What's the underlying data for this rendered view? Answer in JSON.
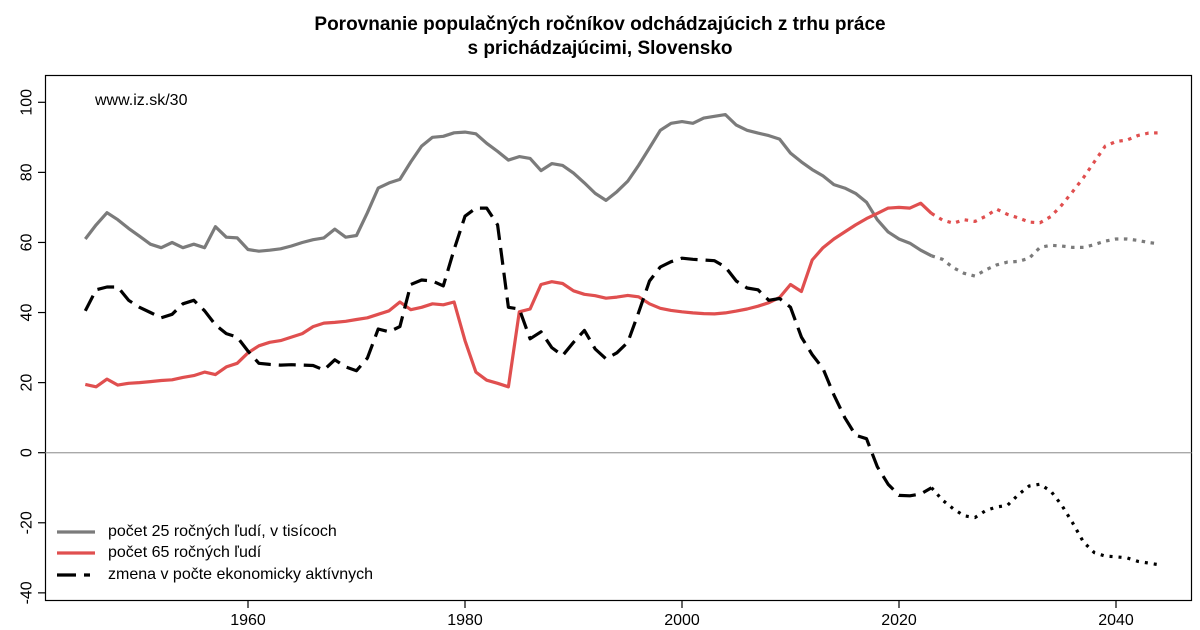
{
  "title": {
    "line1": "Porovnanie populačných ročníkov odchádzajúcich z trhu práce",
    "line2": "s prichádzajúcimi, Slovensko"
  },
  "watermark": "www.iz.sk/30",
  "chart_data": {
    "type": "line",
    "x_start_year": 1945,
    "x_end_year": 2044,
    "x_ticks": [
      1960,
      1980,
      2000,
      2020,
      2040
    ],
    "y_ticks": [
      -40,
      -20,
      0,
      20,
      40,
      60,
      80,
      100
    ],
    "ylim": [
      -43,
      103
    ],
    "zero_line": true,
    "grid": "zero-line-only",
    "projection_from_year": 2023,
    "projection_style": "dotted",
    "legend_position": "bottom-left",
    "axis_color": "#000000",
    "zero_line_color": "#a9a9a9",
    "series": [
      {
        "name": "počet 25 ročných ľudí, v tisícoch",
        "color": "#7b7b7b",
        "line_style": "solid",
        "values": [
          61,
          65,
          68.5,
          66.5,
          64,
          61.8,
          59.5,
          58.5,
          60,
          58.5,
          59.5,
          58.5,
          64.5,
          61.5,
          61.3,
          58,
          57.5,
          57.8,
          58.2,
          59,
          60,
          60.8,
          61.3,
          63.8,
          61.5,
          62,
          68.5,
          75.5,
          77,
          78,
          83,
          87.5,
          90,
          90.3,
          91.3,
          91.5,
          91,
          88.3,
          86,
          83.5,
          84.5,
          84,
          80.5,
          82.5,
          82,
          79.8,
          77,
          74,
          72,
          74.5,
          77.5,
          82,
          87,
          92,
          94,
          94.5,
          94,
          95.5,
          96,
          96.5,
          93.5,
          92,
          91.2,
          90.5,
          89.5,
          85.5,
          83,
          80.8,
          79,
          76.5,
          75.5,
          74,
          71.5,
          66.5,
          63,
          61,
          59.8,
          57.8,
          56.2,
          55.2,
          52.8,
          51.2,
          50.4,
          52.2,
          53.6,
          54.4,
          54.6,
          55.5,
          58.6,
          59.2,
          59,
          58.6,
          58.6,
          59.4,
          60.4,
          61,
          61,
          60.6,
          60,
          59.6
        ]
      },
      {
        "name": "počet 65 ročných ľudí",
        "color": "#e04f4f",
        "line_style": "solid",
        "values": [
          19.5,
          18.8,
          21,
          19.3,
          19.8,
          20,
          20.3,
          20.6,
          20.8,
          21.5,
          22,
          23,
          22.3,
          24.5,
          25.5,
          28.5,
          30.5,
          31.5,
          32,
          33,
          34,
          36,
          37,
          37.2,
          37.5,
          38,
          38.5,
          39.5,
          40.5,
          43,
          40.8,
          41.5,
          42.5,
          42.2,
          43,
          32,
          23,
          20.7,
          19.8,
          18.8,
          40.2,
          41,
          48,
          48.8,
          48.3,
          46.2,
          45.2,
          44.8,
          44.1,
          44.4,
          44.9,
          44.5,
          42.5,
          41.2,
          40.6,
          40.2,
          39.9,
          39.7,
          39.6,
          39.9,
          40.4,
          41,
          41.8,
          42.8,
          44.3,
          48,
          46,
          55,
          58.5,
          61,
          63,
          65,
          66.8,
          68.3,
          69.8,
          70,
          69.8,
          71.2,
          68.3,
          66.4,
          65.5,
          66.5,
          66,
          67.5,
          69.5,
          68,
          67,
          65.8,
          65.6,
          67.4,
          70.7,
          74.5,
          78.5,
          83,
          87.5,
          88.8,
          89.2,
          90.5,
          91.2,
          91.3
        ]
      },
      {
        "name": "zmena v počte ekonomicky aktívnych",
        "color": "#000000",
        "line_style": "dashed",
        "values": [
          40.5,
          46.5,
          47.3,
          47.3,
          43.5,
          41.5,
          40,
          38.5,
          39.5,
          42.5,
          43.5,
          40.5,
          36.5,
          34,
          33,
          29,
          25.5,
          25.2,
          25,
          25.1,
          25,
          24.9,
          23.6,
          26.5,
          24.5,
          23.4,
          27,
          35.3,
          34.5,
          36,
          48,
          49.3,
          49,
          47.6,
          58,
          67.5,
          69.8,
          69.8,
          65,
          41.5,
          41,
          32.5,
          34.5,
          30,
          27.7,
          31.5,
          34.9,
          29.6,
          26.8,
          28.5,
          31.5,
          40,
          49,
          53,
          54.5,
          55.5,
          55.2,
          55,
          54.8,
          53,
          49,
          47,
          46.5,
          43.5,
          44,
          41.5,
          33,
          28,
          24,
          16.5,
          10,
          5,
          4,
          -4,
          -9,
          -12.2,
          -12.3,
          -11.8,
          -10,
          -13.5,
          -16,
          -18,
          -18.5,
          -16.5,
          -15.5,
          -15,
          -12,
          -9.5,
          -9,
          -11,
          -15,
          -20,
          -25.5,
          -28.5,
          -29.5,
          -29.7,
          -30,
          -31,
          -31.5,
          -32
        ]
      }
    ]
  }
}
